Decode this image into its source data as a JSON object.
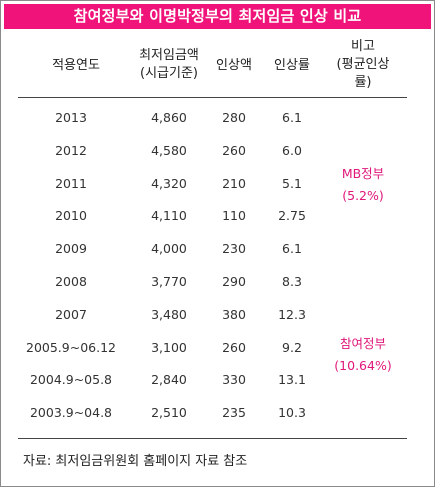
{
  "title": "참여정부와 이명박정부의 최저임금 인상 비교",
  "headers": {
    "year": "적용연도",
    "wage_line1": "최저임금액",
    "wage_line2": "(시급기준)",
    "increase": "인상액",
    "rate": "인상률",
    "note_line1": "비고",
    "note_line2": "(평균인상",
    "note_line3": "률)"
  },
  "rows": [
    {
      "year": "2013",
      "wage": "4,860",
      "increase": "280",
      "rate": "6.1"
    },
    {
      "year": "2012",
      "wage": "4,580",
      "increase": "260",
      "rate": "6.0"
    },
    {
      "year": "2011",
      "wage": "4,320",
      "increase": "210",
      "rate": "5.1"
    },
    {
      "year": "2010",
      "wage": "4,110",
      "increase": "110",
      "rate": "2.75"
    },
    {
      "year": "2009",
      "wage": "4,000",
      "increase": "230",
      "rate": "6.1"
    },
    {
      "year": "2008",
      "wage": "3,770",
      "increase": "290",
      "rate": "8.3"
    },
    {
      "year": "2007",
      "wage": "3,480",
      "increase": "380",
      "rate": "12.3"
    },
    {
      "year": "2005.9~06.12",
      "wage": "3,100",
      "increase": "260",
      "rate": "9.2"
    },
    {
      "year": "2004.9~05.8",
      "wage": "2,840",
      "increase": "330",
      "rate": "13.1"
    },
    {
      "year": "2003.9~04.8",
      "wage": "2,510",
      "increase": "235",
      "rate": "10.3"
    }
  ],
  "notes": {
    "mb_label": "MB정부",
    "mb_avg": "(5.2%)",
    "roh_label": "참여정부",
    "roh_avg": "(10.64%)"
  },
  "source": "자료: 최저임금위원회 홈페이지 자료 참조"
}
